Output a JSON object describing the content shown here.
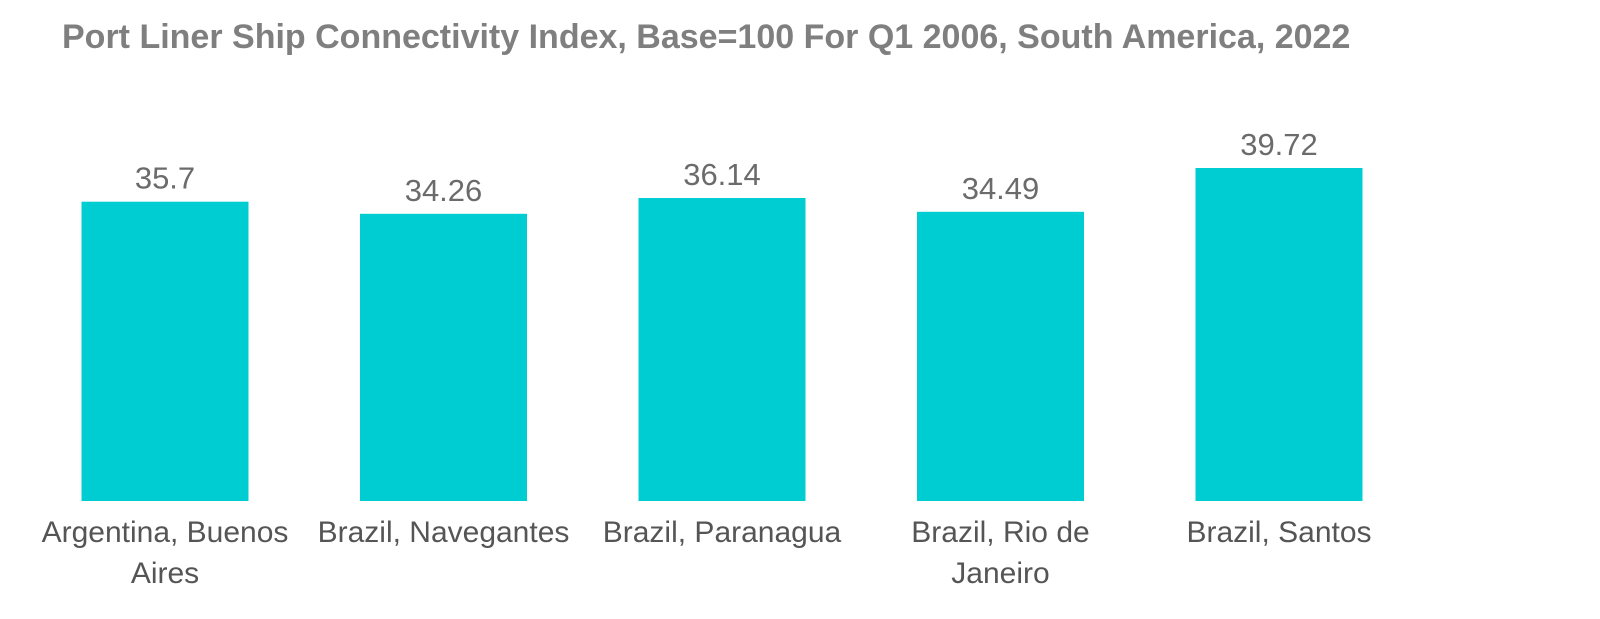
{
  "chart_data": {
    "type": "bar",
    "title": "Port Liner Ship Connectivity Index, Base=100 For Q1 2006, South America, 2022",
    "xlabel": "",
    "ylabel": "",
    "categories": [
      [
        "Argentina, Buenos",
        "Aires"
      ],
      [
        "Brazil, Navegantes"
      ],
      [
        "Brazil, Paranagua"
      ],
      [
        "Brazil, Rio de",
        "Janeiro"
      ],
      [
        "Brazil, Santos"
      ]
    ],
    "values": [
      35.7,
      34.26,
      36.14,
      34.49,
      39.72
    ],
    "value_labels": [
      "35.7",
      "34.26",
      "36.14",
      "34.49",
      "39.72"
    ],
    "ylim": [
      0,
      39.72
    ],
    "grid": false,
    "legend": "none",
    "colors": {
      "bar": "#00cdd1",
      "title": "#7f7f7f",
      "labels": "#555555"
    }
  }
}
